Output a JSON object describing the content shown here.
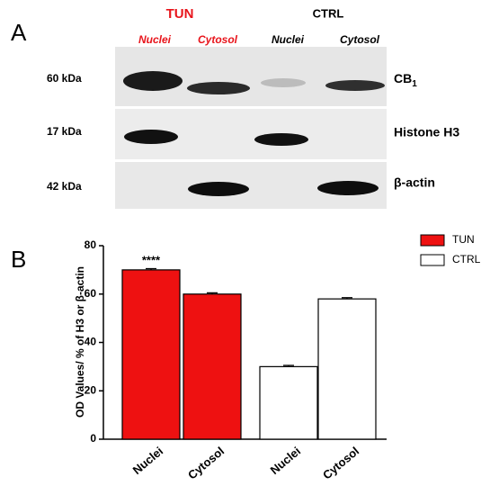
{
  "panel_a": {
    "letter": "A",
    "groups": [
      {
        "label": "TUN",
        "color": "#e8141b"
      },
      {
        "label": "CTRL",
        "color": "#000000"
      }
    ],
    "lanes": [
      "Nuclei",
      "Cytosol",
      "Nuclei",
      "Cytosol"
    ],
    "rows": [
      {
        "size": "60 kDa",
        "label": "CB",
        "label_sub": "1"
      },
      {
        "size": "17 kDa",
        "label": "Histone H3"
      },
      {
        "size": "42 kDa",
        "label": "β-actin"
      }
    ]
  },
  "chart_data": {
    "type": "bar",
    "panel_letter": "B",
    "y_label": "OD Values/ % of H3 or β-actin",
    "categories": [
      "Nuclei",
      "Cytosol",
      "Nuclei",
      "Cytosol"
    ],
    "series": [
      {
        "name": "TUN",
        "color": "#ee1111",
        "values": [
          70,
          60,
          null,
          null
        ],
        "errors": [
          0.5,
          0.5,
          null,
          null
        ]
      },
      {
        "name": "CTRL",
        "color": "#ffffff",
        "values": [
          null,
          null,
          30,
          58
        ],
        "errors": [
          null,
          null,
          0.5,
          0.5
        ]
      }
    ],
    "annotations": [
      {
        "text": "****",
        "category": 0
      }
    ],
    "ylim": [
      0,
      80
    ],
    "yticks": [
      0,
      20,
      40,
      60,
      80
    ],
    "legend": "top-right"
  }
}
